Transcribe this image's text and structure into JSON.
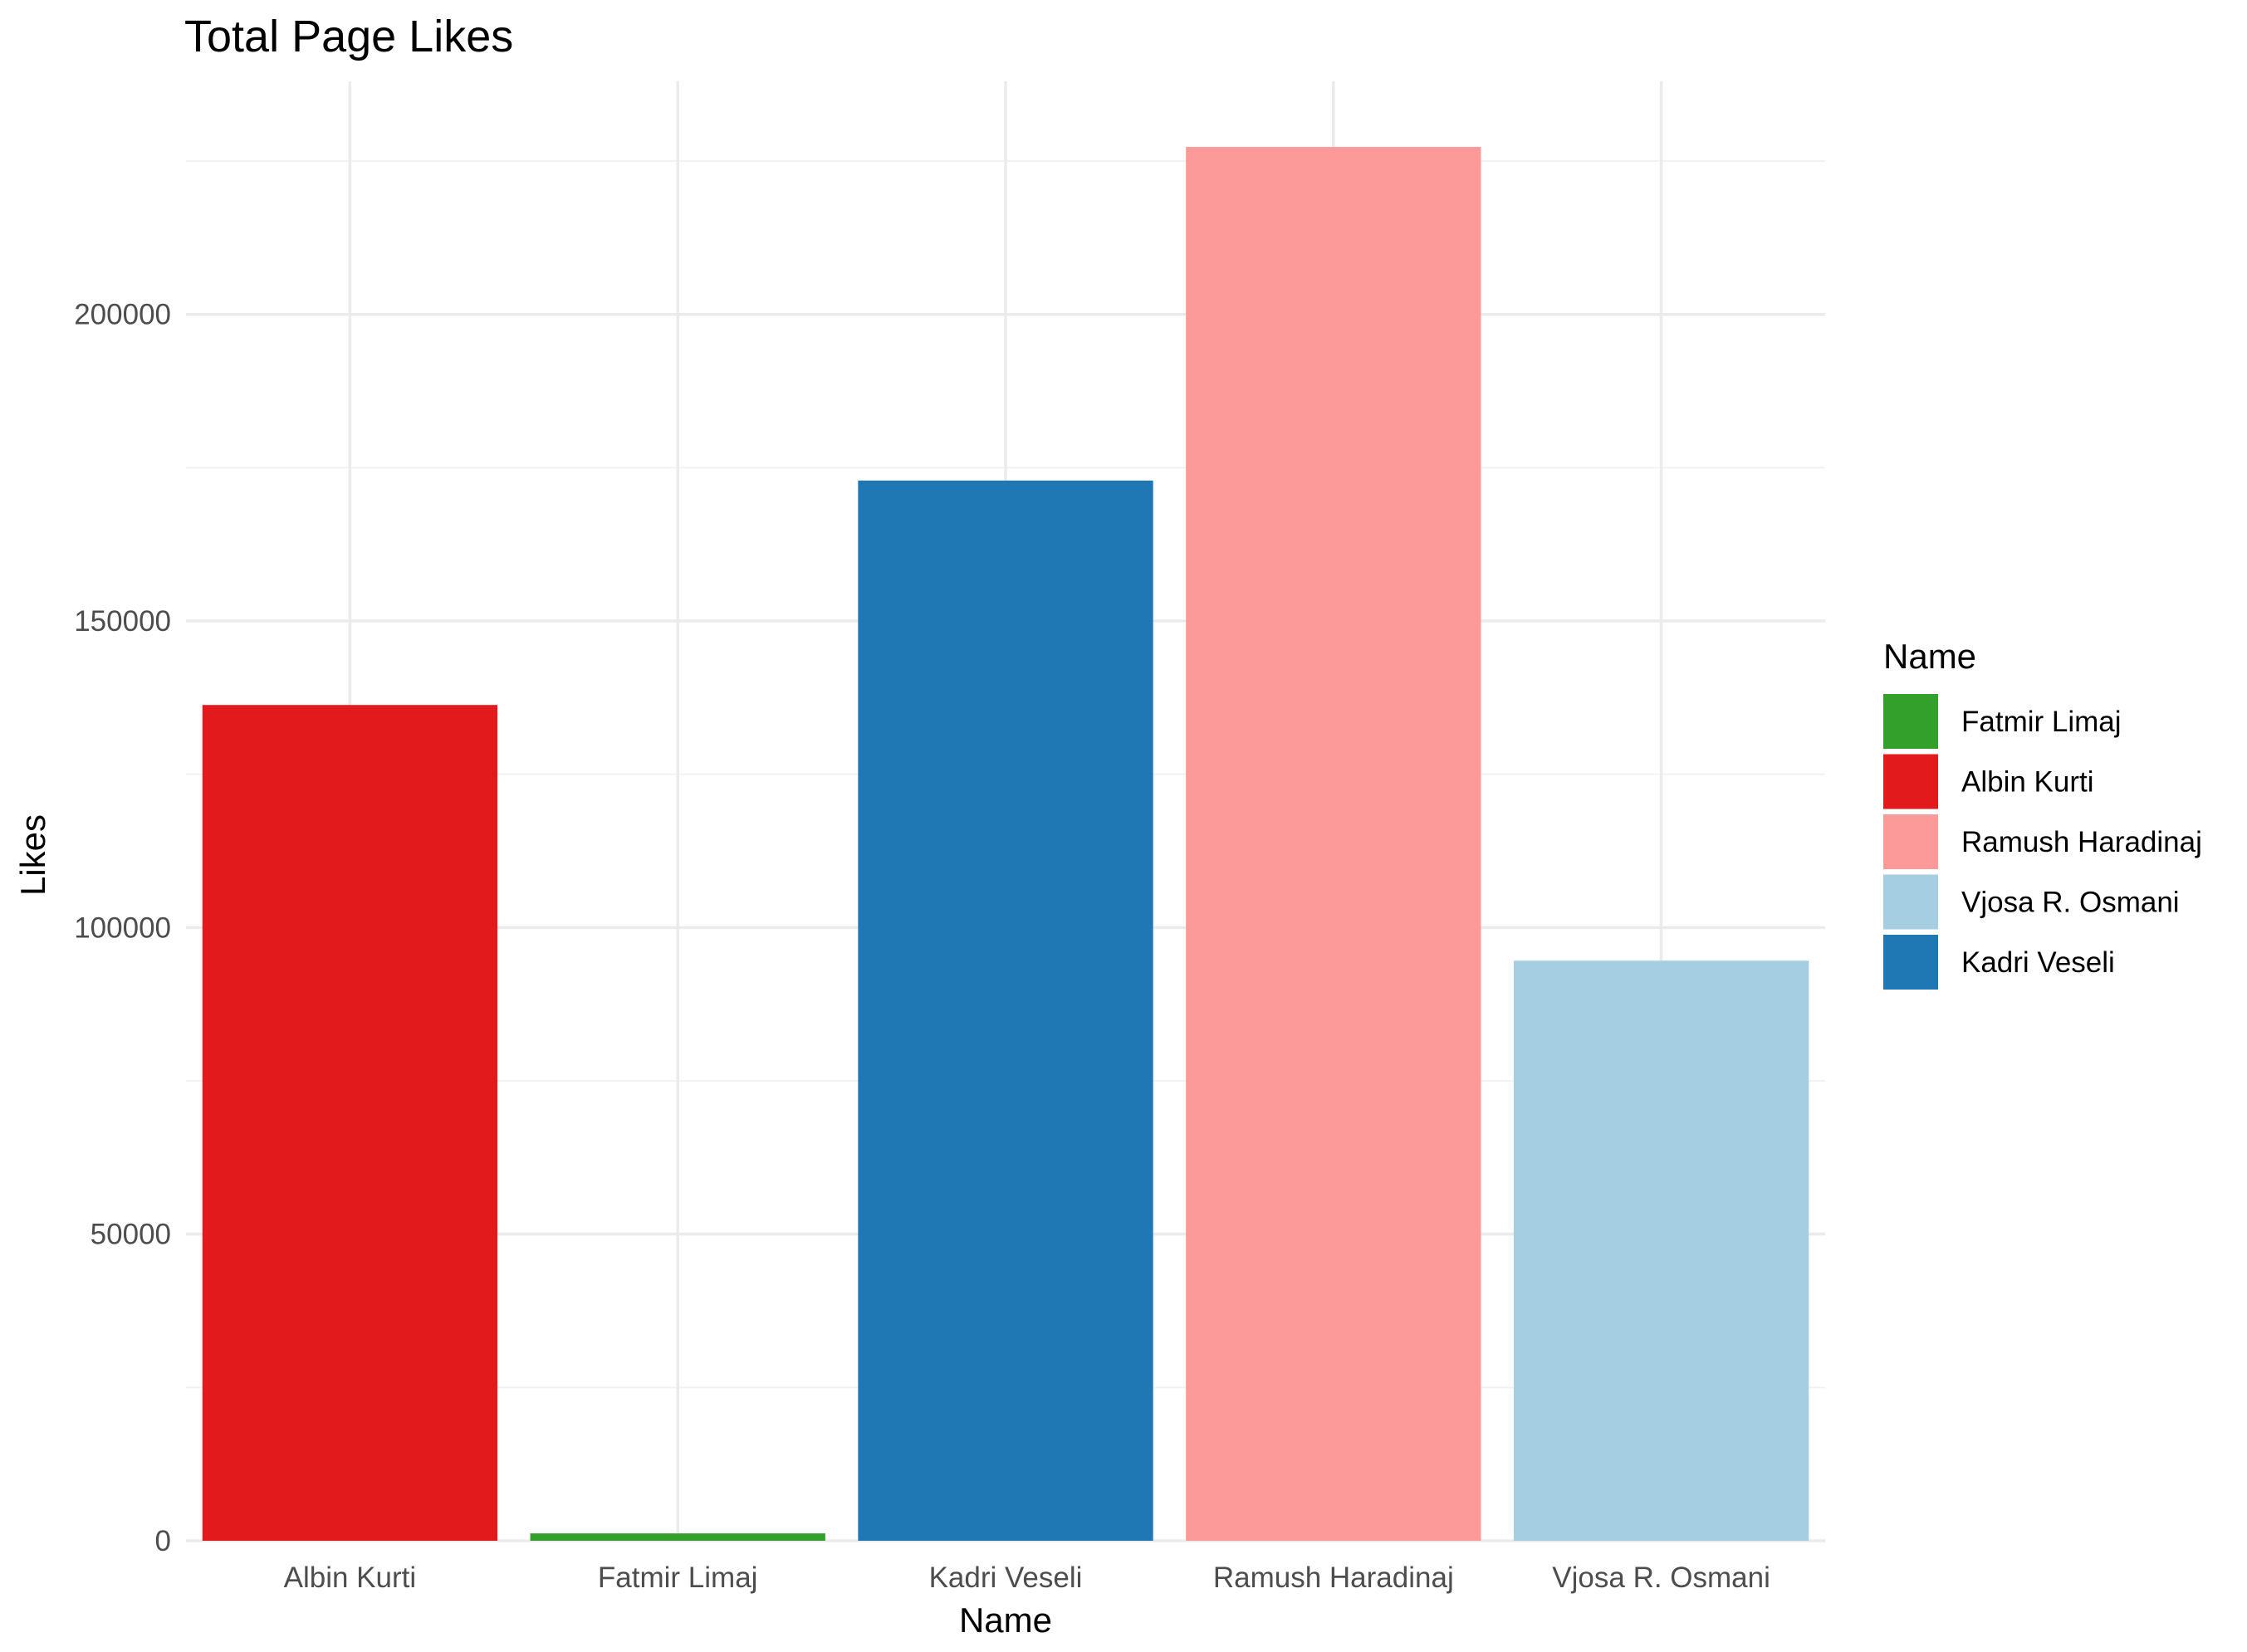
{
  "chart_data": {
    "type": "bar",
    "title": "Total Page Likes",
    "xlabel": "Name",
    "ylabel": "Likes",
    "categories": [
      "Albin Kurti",
      "Fatmir Limaj",
      "Kadri Veseli",
      "Ramush Haradinaj",
      "Vjosa R. Osmani"
    ],
    "values": [
      136300,
      1200,
      172900,
      227300,
      94600
    ],
    "colors": [
      "#e31a1c",
      "#33a02c",
      "#1f78b4",
      "#fb9a99",
      "#a6cee3"
    ],
    "ylim": [
      0,
      238000
    ],
    "yticks": [
      0,
      50000,
      100000,
      150000,
      200000
    ],
    "ytick_labels": [
      "0",
      "50000",
      "100000",
      "150000",
      "200000"
    ],
    "grid": true,
    "legend": {
      "title": "Name",
      "position": "right",
      "entries": [
        {
          "label": "Fatmir Limaj",
          "color": "#33a02c"
        },
        {
          "label": "Albin Kurti",
          "color": "#e31a1c"
        },
        {
          "label": "Ramush Haradinaj",
          "color": "#fb9a99"
        },
        {
          "label": "Vjosa R. Osmani",
          "color": "#a6cee3"
        },
        {
          "label": "Kadri Veseli",
          "color": "#1f78b4"
        }
      ]
    }
  }
}
